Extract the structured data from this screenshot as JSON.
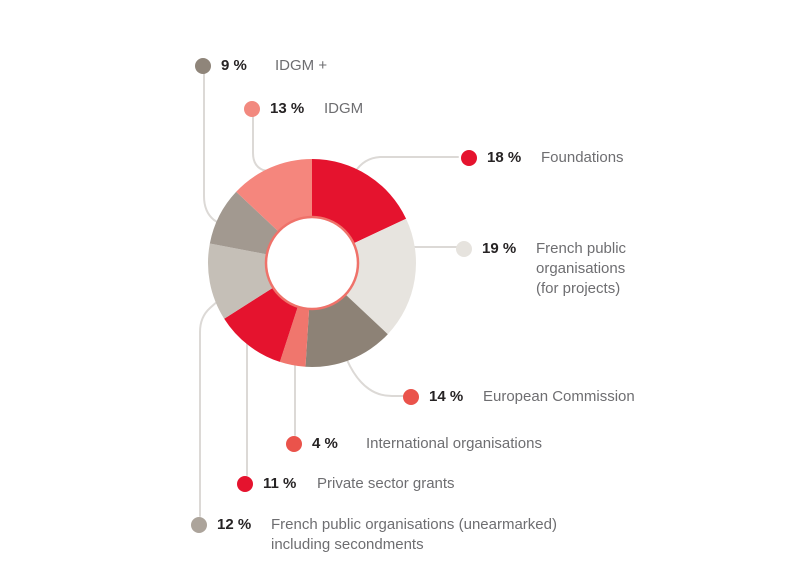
{
  "page": {
    "background": "#ffffff"
  },
  "chart_data": {
    "type": "pie",
    "subtype": "donut",
    "title": "",
    "unit": "%",
    "clockwise": true,
    "start_angle_deg": 0,
    "legend_position": "around",
    "inner_hole_ring_color": "#ef726a",
    "leader_line_color": "#dcd9d6",
    "value_text_color": "#262324",
    "label_text_color": "#6e6e71",
    "slices": [
      {
        "id": "foundations",
        "label": "Foundations",
        "value": 18,
        "display_value": "18 %",
        "segment_color": "#e5132e",
        "dot_color": "#e5132e"
      },
      {
        "id": "french-public-projects",
        "label": "French public organisations (for projects)",
        "value": 19,
        "display_value": "19 %",
        "segment_color": "#e7e4df",
        "dot_color": "#e6e3de",
        "label_lines": [
          "French public",
          "organisations",
          "(for projects)"
        ]
      },
      {
        "id": "european-commission",
        "label": "European Commission",
        "value": 14,
        "display_value": "14 %",
        "segment_color": "#8d8276",
        "dot_color": "#ea534b"
      },
      {
        "id": "international-organisations",
        "label": "International organisations",
        "value": 4,
        "display_value": "4 %",
        "segment_color": "#f0766d",
        "dot_color": "#ea534b"
      },
      {
        "id": "private-sector-grants",
        "label": "Private sector grants",
        "value": 11,
        "display_value": "11 %",
        "segment_color": "#e5132e",
        "dot_color": "#e5132e"
      },
      {
        "id": "french-public-unearmarked",
        "label": "French public organisations (unearmarked) including secondments",
        "value": 12,
        "display_value": "12 %",
        "segment_color": "#c5bfb7",
        "dot_color": "#aca49b",
        "label_lines": [
          "French public organisations (unearmarked)",
          "including secondments"
        ]
      },
      {
        "id": "idgm-plus",
        "label": "IDGM +",
        "value": 9,
        "display_value": "9 %",
        "segment_color": "#a29990",
        "dot_color": "#8f857a"
      },
      {
        "id": "idgm",
        "label": "IDGM",
        "value": 13,
        "display_value": "13 %",
        "segment_color": "#f5867d",
        "dot_color": "#f2897f"
      }
    ]
  }
}
